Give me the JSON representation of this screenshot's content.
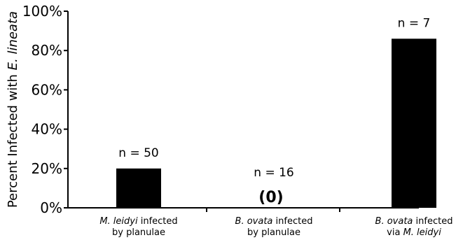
{
  "chart_data": {
    "type": "bar",
    "ylabel_prefix": "Percent Infected with ",
    "ylabel_species": "E. lineata",
    "ylim": [
      0,
      100
    ],
    "yticks": [
      0,
      20,
      40,
      60,
      80,
      100
    ],
    "ytick_labels": [
      "0%",
      "20%",
      "40%",
      "60%",
      "80%",
      "100%"
    ],
    "bar_color": "#000000",
    "grid": false,
    "categories": [
      {
        "line1_species": "M. leidyi",
        "line1_rest": " infected",
        "line2_plain": "by planulae",
        "line2_species": ""
      },
      {
        "line1_species": "B. ovata",
        "line1_rest": " infected",
        "line2_plain": "by planulae",
        "line2_species": ""
      },
      {
        "line1_species": "B. ovata",
        "line1_rest": "  infected",
        "line2_plain": "via ",
        "line2_species": "M. leidyi"
      }
    ],
    "values": [
      20,
      0,
      86
    ],
    "n_labels": [
      "n = 50",
      "n = 16",
      "n = 7"
    ],
    "value_labels": [
      "",
      "(0)",
      ""
    ]
  }
}
